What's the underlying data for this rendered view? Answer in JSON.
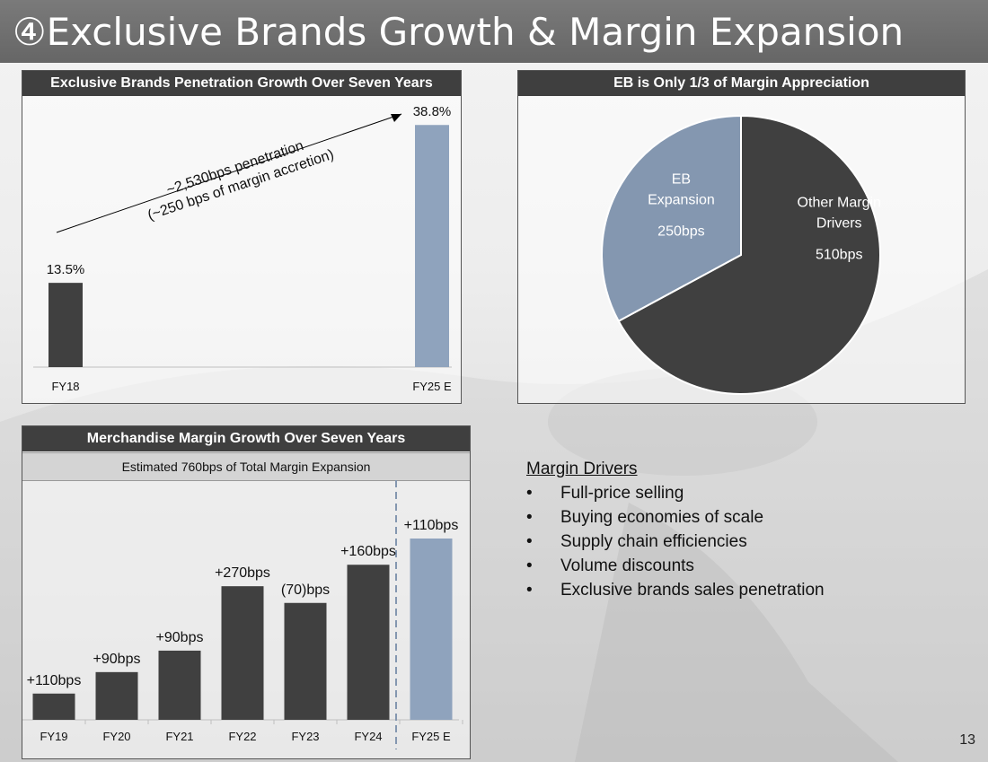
{
  "page": {
    "title": "④Exclusive Brands Growth & Margin Expansion",
    "page_number": "13"
  },
  "panel_penetration": {
    "heading": "Exclusive Brands Penetration Growth Over Seven Years",
    "annotation_line1": "~2,530bps penetration",
    "annotation_line2": "(~250 bps of margin accretion)"
  },
  "panel_pie": {
    "heading": "EB is Only 1/3 of Margin Appreciation"
  },
  "panel_margin": {
    "heading": "Merchandise Margin Growth Over Seven Years",
    "subheading": "Estimated 760bps of Total Margin Expansion"
  },
  "drivers": {
    "title": "Margin Drivers",
    "items": [
      "Full-price selling",
      "Buying economies of scale",
      "Supply chain efficiencies",
      "Volume discounts",
      "Exclusive brands sales penetration"
    ]
  },
  "colors": {
    "dark_bar": "#404040",
    "light_bar": "#8fa3bd",
    "pie_dark": "#404040",
    "pie_light": "#8497b0"
  },
  "chart_data": [
    {
      "id": "penetration",
      "type": "bar",
      "categories": [
        "FY18",
        "FY25 E"
      ],
      "values": [
        13.5,
        38.8
      ],
      "labels": [
        "13.5%",
        "38.8%"
      ],
      "colors": [
        "#404040",
        "#8fa3bd"
      ],
      "ylim": [
        0,
        42
      ]
    },
    {
      "id": "pie",
      "type": "pie",
      "slices": [
        {
          "label": "EB Expansion",
          "label_lines": [
            "EB",
            "Expansion"
          ],
          "value": 250,
          "value_label": "250bps",
          "color": "#8497b0"
        },
        {
          "label": "Other Margin Drivers",
          "label_lines": [
            "Other Margin",
            "Drivers"
          ],
          "value": 510,
          "value_label": "510bps",
          "color": "#404040"
        }
      ]
    },
    {
      "id": "margin",
      "type": "bar",
      "categories": [
        "FY19",
        "FY20",
        "FY21",
        "FY22",
        "FY23",
        "FY24",
        "FY25 E"
      ],
      "values": [
        110,
        200,
        290,
        560,
        490,
        650,
        760
      ],
      "labels": [
        "+110bps",
        "+90bps",
        "+90bps",
        "+270bps",
        "(70)bps",
        "+160bps",
        "+110bps"
      ],
      "colors": [
        "#404040",
        "#404040",
        "#404040",
        "#404040",
        "#404040",
        "#404040",
        "#8fa3bd"
      ],
      "ylim": [
        0,
        760
      ]
    }
  ]
}
